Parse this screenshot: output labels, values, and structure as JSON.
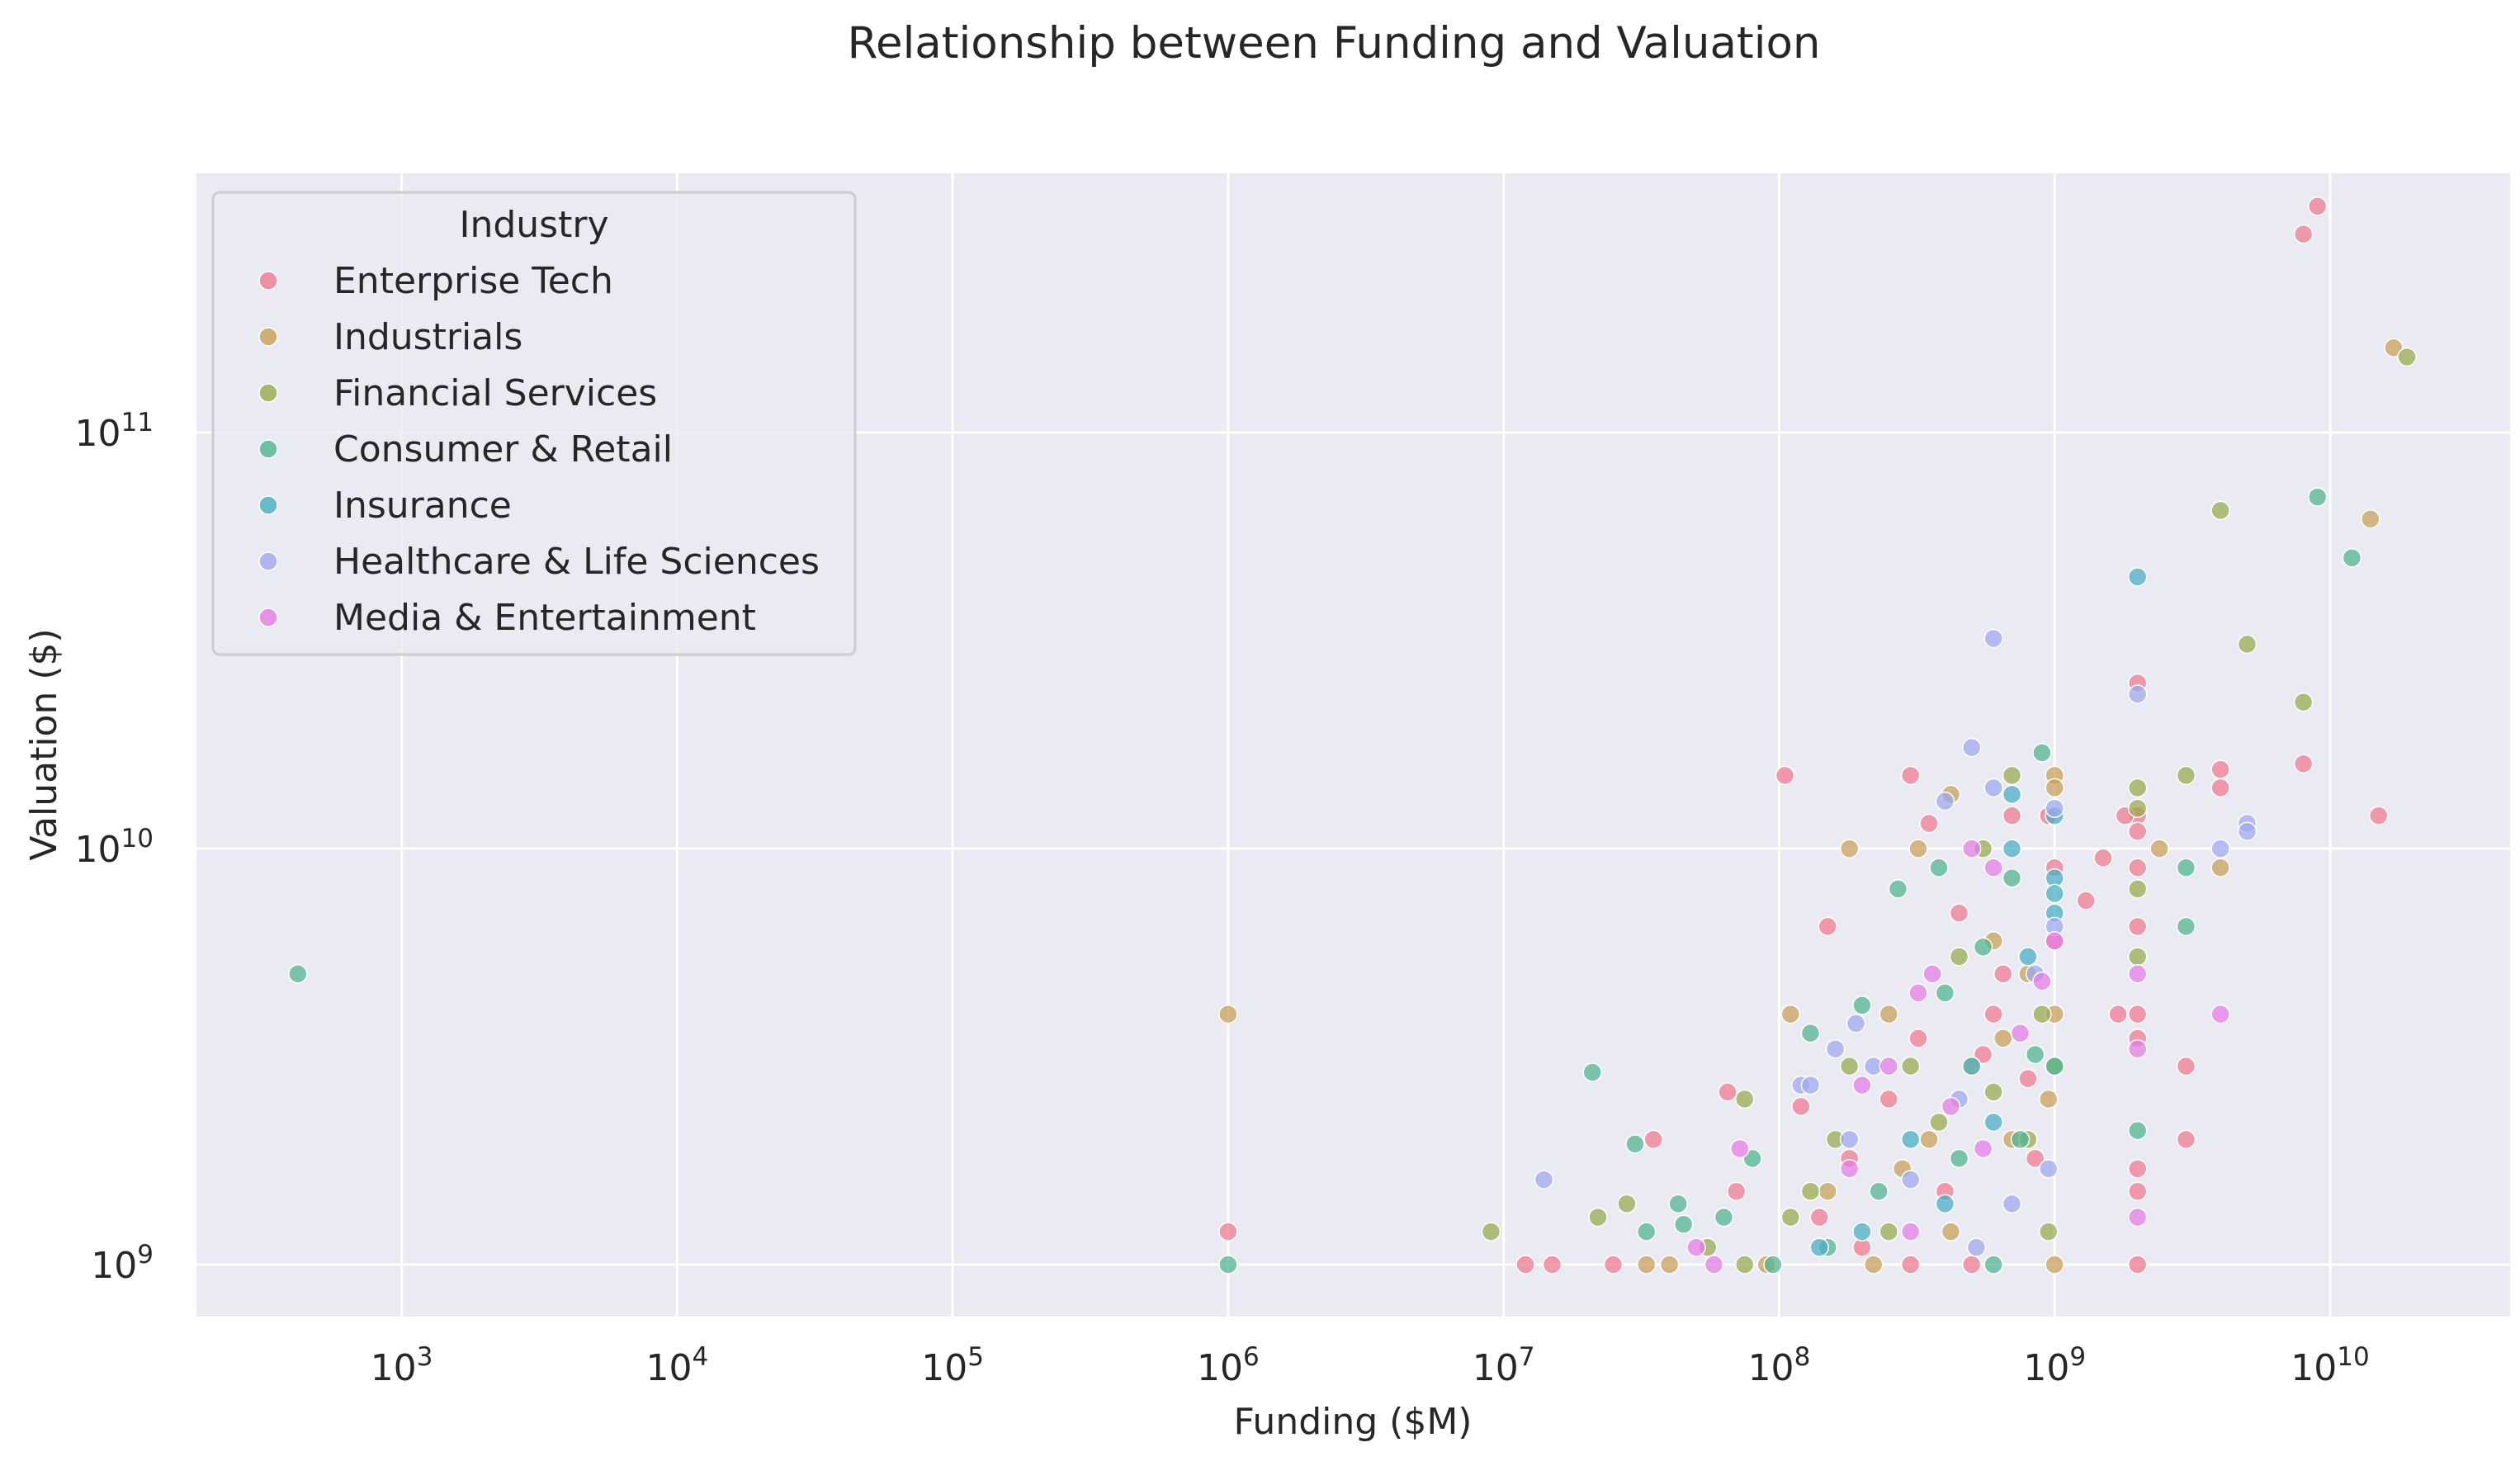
{
  "chart_data": {
    "type": "scatter",
    "title": "Relationship between Funding and Valuation",
    "xlabel": "Funding ($M)",
    "ylabel": "Valuation ($)",
    "xscale": "log",
    "yscale": "log",
    "xlim": [
      180,
      45000000000
    ],
    "ylim": [
      750000000,
      420000000000
    ],
    "x_ticks": [
      {
        "value": 1000,
        "base": "10",
        "exp": "3"
      },
      {
        "value": 10000,
        "base": "10",
        "exp": "4"
      },
      {
        "value": 100000,
        "base": "10",
        "exp": "5"
      },
      {
        "value": 1000000,
        "base": "10",
        "exp": "6"
      },
      {
        "value": 10000000,
        "base": "10",
        "exp": "7"
      },
      {
        "value": 100000000,
        "base": "10",
        "exp": "8"
      },
      {
        "value": 1000000000,
        "base": "10",
        "exp": "9"
      },
      {
        "value": 10000000000,
        "base": "10",
        "exp": "10"
      }
    ],
    "y_ticks": [
      {
        "value": 1000000000,
        "base": "10",
        "exp": "9"
      },
      {
        "value": 10000000000,
        "base": "10",
        "exp": "10"
      },
      {
        "value": 100000000000,
        "base": "10",
        "exp": "11"
      }
    ],
    "grid": true,
    "legend": {
      "title": "Industry",
      "position": "top-left"
    },
    "series": [
      {
        "name": "Enterprise Tech",
        "color": "#f0788c",
        "points": [
          [
            9000000000,
            350000000000
          ],
          [
            8000000000,
            300000000000
          ],
          [
            15000000000,
            12000000000
          ],
          [
            8000000000,
            16000000000
          ],
          [
            4000000000,
            15500000000
          ],
          [
            4000000000,
            14000000000
          ],
          [
            2000000000,
            25000000000
          ],
          [
            2000000000,
            12000000000
          ],
          [
            2000000000,
            11000000000
          ],
          [
            2000000000,
            9000000000
          ],
          [
            2000000000,
            6500000000
          ],
          [
            2000000000,
            4000000000
          ],
          [
            2000000000,
            3500000000
          ],
          [
            2000000000,
            1700000000
          ],
          [
            2000000000,
            1500000000
          ],
          [
            2000000000,
            1000000000
          ],
          [
            3000000000,
            3000000000
          ],
          [
            3000000000,
            2000000000
          ],
          [
            1800000000,
            12000000000
          ],
          [
            1500000000,
            9500000000
          ],
          [
            1300000000,
            7500000000
          ],
          [
            1700000000,
            4000000000
          ],
          [
            105000000,
            15000000000
          ],
          [
            300000000,
            15000000000
          ],
          [
            350000000,
            11500000000
          ],
          [
            150000000,
            6500000000
          ],
          [
            35000000,
            2000000000
          ],
          [
            65000000,
            2600000000
          ],
          [
            70000000,
            1500000000
          ],
          [
            12000000,
            1000000000
          ],
          [
            15000000,
            1000000000
          ],
          [
            25000000,
            1000000000
          ],
          [
            1000000,
            1200000000
          ],
          [
            120000000,
            2400000000
          ],
          [
            1000000000,
            6000000000
          ],
          [
            950000000,
            12000000000
          ],
          [
            700000000,
            12000000000
          ],
          [
            450000000,
            7000000000
          ],
          [
            600000000,
            4000000000
          ],
          [
            250000000,
            2500000000
          ],
          [
            180000000,
            1800000000
          ],
          [
            140000000,
            1300000000
          ],
          [
            400000000,
            1500000000
          ],
          [
            800000000,
            2800000000
          ],
          [
            500000000,
            1000000000
          ],
          [
            300000000,
            1000000000
          ],
          [
            200000000,
            1100000000
          ],
          [
            850000000,
            1800000000
          ],
          [
            1000000000,
            9000000000
          ],
          [
            650000000,
            5000000000
          ],
          [
            550000000,
            3200000000
          ],
          [
            320000000,
            3500000000
          ]
        ]
      },
      {
        "name": "Industrials",
        "color": "#c9a055",
        "points": [
          [
            17000000000,
            160000000000
          ],
          [
            14000000000,
            62000000000
          ],
          [
            4000000000,
            9000000000
          ],
          [
            2400000000,
            10000000000
          ],
          [
            1000000,
            4000000000
          ],
          [
            180000000,
            10000000000
          ],
          [
            320000000,
            10000000000
          ],
          [
            420000000,
            13500000000
          ],
          [
            1000000000,
            15000000000
          ],
          [
            1000000000,
            14000000000
          ],
          [
            110000000,
            4000000000
          ],
          [
            250000000,
            4000000000
          ],
          [
            600000000,
            6000000000
          ],
          [
            800000000,
            5000000000
          ],
          [
            1000000000,
            4000000000
          ],
          [
            500000000,
            3000000000
          ],
          [
            350000000,
            2000000000
          ],
          [
            150000000,
            1500000000
          ],
          [
            40000000,
            1000000000
          ],
          [
            33000000,
            1000000000
          ],
          [
            90000000,
            1000000000
          ],
          [
            700000000,
            2000000000
          ],
          [
            950000000,
            2500000000
          ],
          [
            420000000,
            1200000000
          ],
          [
            220000000,
            1000000000
          ],
          [
            1000000000,
            1000000000
          ],
          [
            650000000,
            3500000000
          ],
          [
            280000000,
            1700000000
          ]
        ]
      },
      {
        "name": "Financial Services",
        "color": "#96aa4a",
        "points": [
          [
            19000000000,
            152000000000
          ],
          [
            4000000000,
            65000000000
          ],
          [
            5000000000,
            31000000000
          ],
          [
            8000000000,
            22500000000
          ],
          [
            3000000000,
            15000000000
          ],
          [
            2000000000,
            14000000000
          ],
          [
            2000000000,
            12500000000
          ],
          [
            2000000000,
            8000000000
          ],
          [
            2000000000,
            5500000000
          ],
          [
            9000000,
            1200000000
          ],
          [
            22000000,
            1300000000
          ],
          [
            28000000,
            1400000000
          ],
          [
            75000000,
            2500000000
          ],
          [
            55000000,
            1100000000
          ],
          [
            180000000,
            3000000000
          ],
          [
            700000000,
            15000000000
          ],
          [
            550000000,
            10000000000
          ],
          [
            450000000,
            5500000000
          ],
          [
            300000000,
            3000000000
          ],
          [
            160000000,
            2000000000
          ],
          [
            130000000,
            1500000000
          ],
          [
            250000000,
            1200000000
          ],
          [
            900000000,
            4000000000
          ],
          [
            800000000,
            2000000000
          ],
          [
            1000000000,
            3000000000
          ],
          [
            600000000,
            2600000000
          ],
          [
            380000000,
            2200000000
          ],
          [
            110000000,
            1300000000
          ],
          [
            75000000,
            1000000000
          ],
          [
            950000000,
            1200000000
          ]
        ]
      },
      {
        "name": "Consumer & Retail",
        "color": "#4fb48f",
        "points": [
          [
            420,
            5000000000
          ],
          [
            9000000000,
            70000000000
          ],
          [
            12000000000,
            50000000000
          ],
          [
            3000000000,
            9000000000
          ],
          [
            3000000000,
            6500000000
          ],
          [
            2000000000,
            2100000000
          ],
          [
            1000000,
            1000000000
          ],
          [
            21000000,
            2900000000
          ],
          [
            30000000,
            1950000000
          ],
          [
            45000000,
            1250000000
          ],
          [
            43000000,
            1400000000
          ],
          [
            33000000,
            1200000000
          ],
          [
            63000000,
            1300000000
          ],
          [
            80000000,
            1800000000
          ],
          [
            130000000,
            3600000000
          ],
          [
            200000000,
            4200000000
          ],
          [
            270000000,
            8000000000
          ],
          [
            380000000,
            9000000000
          ],
          [
            900000000,
            17000000000
          ],
          [
            700000000,
            8500000000
          ],
          [
            550000000,
            5800000000
          ],
          [
            400000000,
            4500000000
          ],
          [
            1000000000,
            3000000000
          ],
          [
            750000000,
            2000000000
          ],
          [
            450000000,
            1800000000
          ],
          [
            230000000,
            1500000000
          ],
          [
            150000000,
            1100000000
          ],
          [
            95000000,
            1000000000
          ],
          [
            600000000,
            1000000000
          ],
          [
            850000000,
            3200000000
          ]
        ]
      },
      {
        "name": "Insurance",
        "color": "#45aec4",
        "points": [
          [
            2000000000,
            45000000000
          ],
          [
            1000000000,
            8500000000
          ],
          [
            1000000000,
            7800000000
          ],
          [
            1000000000,
            7000000000
          ],
          [
            700000000,
            10000000000
          ],
          [
            700000000,
            13500000000
          ],
          [
            1000000000,
            12000000000
          ],
          [
            500000000,
            3000000000
          ],
          [
            300000000,
            2000000000
          ],
          [
            200000000,
            1200000000
          ],
          [
            800000000,
            5500000000
          ],
          [
            600000000,
            2200000000
          ],
          [
            400000000,
            1400000000
          ],
          [
            140000000,
            1100000000
          ]
        ]
      },
      {
        "name": "Healthcare & Life Sciences",
        "color": "#9da9f0",
        "points": [
          [
            600000000,
            32000000000
          ],
          [
            2000000000,
            23500000000
          ],
          [
            500000000,
            17500000000
          ],
          [
            600000000,
            14000000000
          ],
          [
            400000000,
            13000000000
          ],
          [
            1000000000,
            12500000000
          ],
          [
            5000000000,
            11500000000
          ],
          [
            5000000000,
            11000000000
          ],
          [
            4000000000,
            10000000000
          ],
          [
            14000000,
            1600000000
          ],
          [
            120000000,
            2700000000
          ],
          [
            130000000,
            2700000000
          ],
          [
            160000000,
            3300000000
          ],
          [
            190000000,
            3800000000
          ],
          [
            220000000,
            3000000000
          ],
          [
            950000000,
            1700000000
          ],
          [
            700000000,
            1400000000
          ],
          [
            450000000,
            2500000000
          ],
          [
            300000000,
            1600000000
          ],
          [
            850000000,
            5000000000
          ],
          [
            1000000000,
            6500000000
          ],
          [
            180000000,
            2000000000
          ],
          [
            520000000,
            1100000000
          ]
        ]
      },
      {
        "name": "Media & Entertainment",
        "color": "#e67ae6",
        "points": [
          [
            500000000,
            10000000000
          ],
          [
            2000000000,
            5000000000
          ],
          [
            2000000000,
            3300000000
          ],
          [
            2000000000,
            1300000000
          ],
          [
            4000000000,
            4000000000
          ],
          [
            360000000,
            5000000000
          ],
          [
            320000000,
            4500000000
          ],
          [
            250000000,
            3000000000
          ],
          [
            200000000,
            2700000000
          ],
          [
            72000000,
            1900000000
          ],
          [
            50000000,
            1100000000
          ],
          [
            58000000,
            1000000000
          ],
          [
            600000000,
            9000000000
          ],
          [
            900000000,
            4800000000
          ],
          [
            420000000,
            2400000000
          ],
          [
            180000000,
            1700000000
          ],
          [
            750000000,
            3600000000
          ],
          [
            550000000,
            1900000000
          ],
          [
            300000000,
            1200000000
          ],
          [
            1000000000,
            6000000000
          ]
        ]
      }
    ]
  }
}
